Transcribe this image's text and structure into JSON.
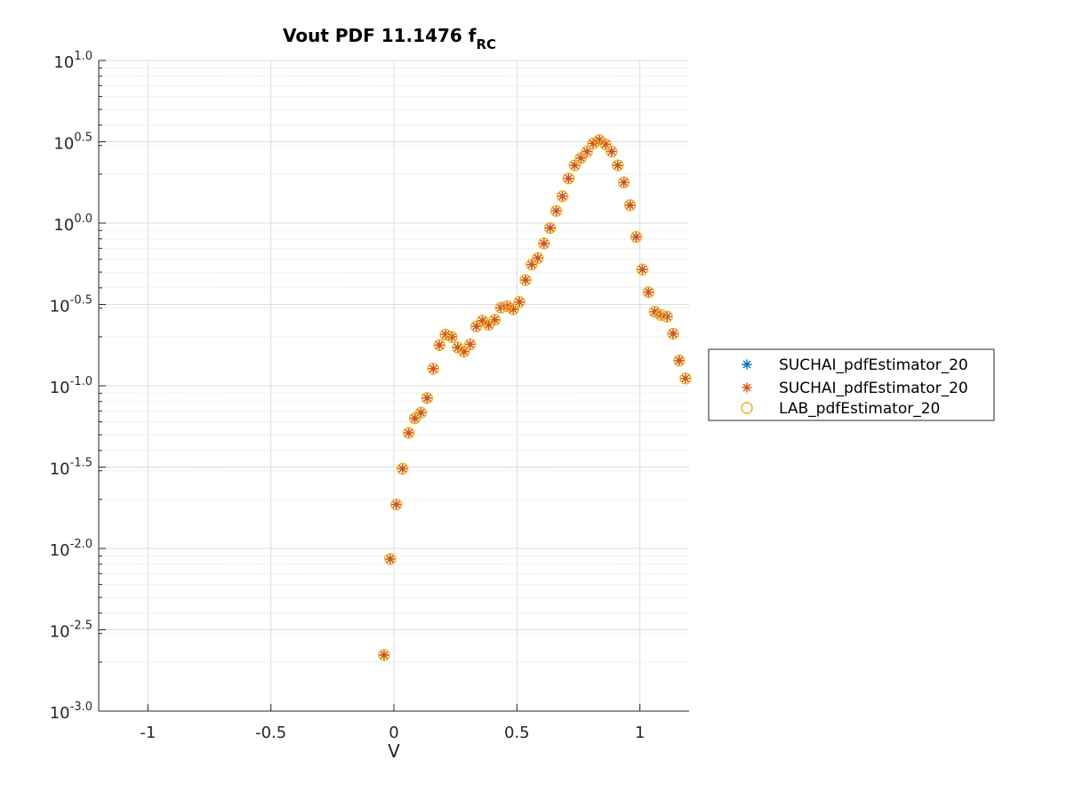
{
  "chart_data": {
    "type": "scatter",
    "title": "Vout PDF 11.1476 f",
    "title_subscript": "RC",
    "xlabel": "V",
    "ylabel": "",
    "xlim": [
      -1.2,
      1.2
    ],
    "ylim_log10": [
      -3.0,
      1.0
    ],
    "yscale": "log",
    "grid": true,
    "minor_grid": true,
    "legend_position": "outside-right",
    "x_ticks": [
      -1,
      -0.5,
      0,
      0.5,
      1
    ],
    "x_tick_labels": [
      "-1",
      "-0.5",
      "0",
      "0.5",
      "1"
    ],
    "y_ticks_log10": [
      -3.0,
      -2.5,
      -2.0,
      -1.5,
      -1.0,
      -0.5,
      0.0,
      0.5,
      1.0
    ],
    "y_tick_base": "10",
    "y_tick_exponents": [
      "-3.0",
      "-2.5",
      "-2.0",
      "-1.5",
      "-1.0",
      "-0.5",
      "0.0",
      "0.5",
      "1.0"
    ],
    "series": [
      {
        "name": "SUCHAI_pdfEstimator_20",
        "marker": "asterisk",
        "color": "#0072BD"
      },
      {
        "name": "SUCHAI_pdfEstimator_20",
        "marker": "asterisk",
        "color": "#D95319"
      },
      {
        "name": "LAB_pdfEstimator_20",
        "marker": "circle",
        "color": "#EDB120"
      }
    ],
    "x": [
      -0.04,
      -0.015,
      0.01,
      0.035,
      0.06,
      0.085,
      0.11,
      0.135,
      0.16,
      0.185,
      0.21,
      0.235,
      0.26,
      0.285,
      0.31,
      0.335,
      0.36,
      0.385,
      0.41,
      0.435,
      0.46,
      0.485,
      0.51,
      0.535,
      0.56,
      0.585,
      0.61,
      0.635,
      0.66,
      0.685,
      0.71,
      0.735,
      0.76,
      0.785,
      0.81,
      0.835,
      0.86,
      0.885,
      0.91,
      0.935,
      0.96,
      0.985,
      1.01,
      1.035,
      1.06,
      1.085,
      1.11,
      1.135,
      1.16,
      1.185
    ],
    "y_log10": [
      -2.655,
      -2.065,
      -1.73,
      -1.51,
      -1.29,
      -1.2,
      -1.165,
      -1.075,
      -0.895,
      -0.75,
      -0.685,
      -0.7,
      -0.765,
      -0.79,
      -0.745,
      -0.635,
      -0.6,
      -0.625,
      -0.595,
      -0.52,
      -0.51,
      -0.53,
      -0.485,
      -0.35,
      -0.255,
      -0.215,
      -0.125,
      -0.03,
      0.075,
      0.165,
      0.275,
      0.355,
      0.4,
      0.44,
      0.49,
      0.51,
      0.485,
      0.44,
      0.355,
      0.25,
      0.11,
      -0.085,
      -0.285,
      -0.425,
      -0.545,
      -0.565,
      -0.575,
      -0.68,
      -0.845,
      -0.955
    ]
  }
}
